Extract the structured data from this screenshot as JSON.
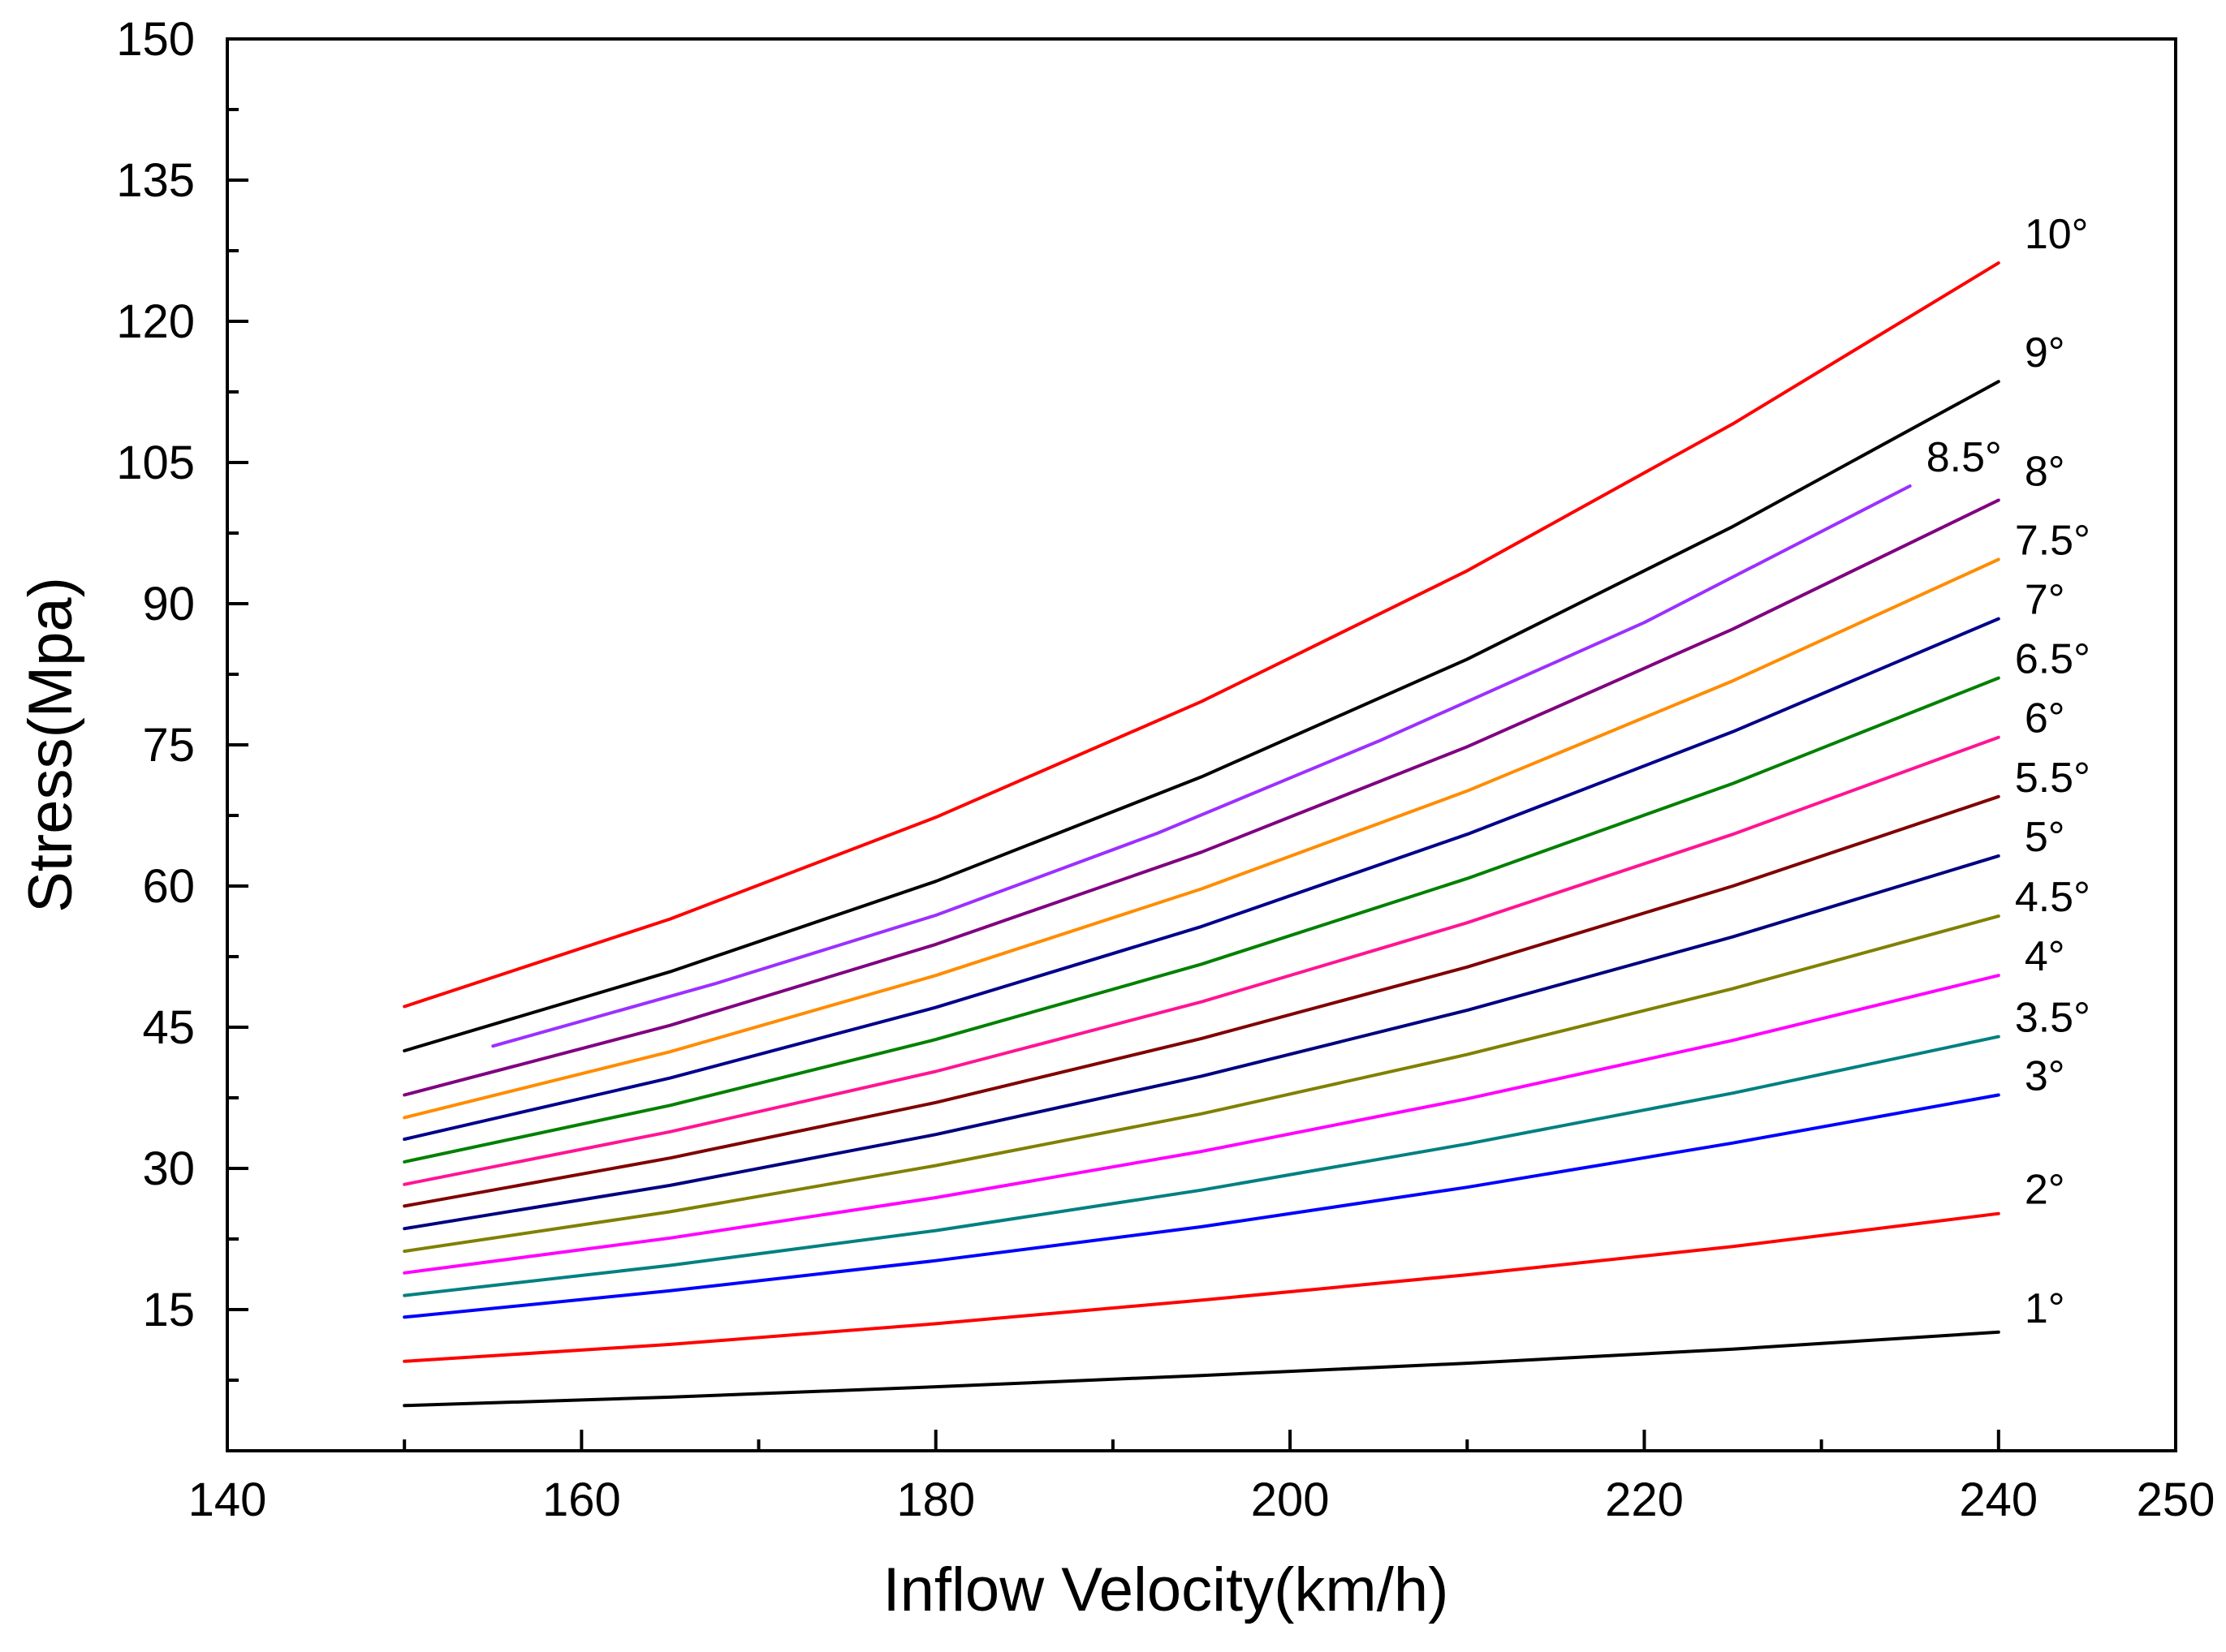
{
  "chart_data": {
    "type": "line",
    "title": "",
    "xlabel": "Inflow Velocity(km/h)",
    "ylabel": "Stress(Mpa)",
    "xlim": [
      140,
      250
    ],
    "ylim": [
      0,
      150
    ],
    "x_ticks": [
      140,
      160,
      180,
      200,
      220,
      240,
      250
    ],
    "y_ticks": [
      15,
      30,
      45,
      60,
      75,
      90,
      105,
      120,
      135,
      150
    ],
    "grid": false,
    "legend": "inline labels at right end of each line",
    "series": [
      {
        "name": "1°",
        "color": "#000000",
        "x": [
          150,
          165,
          180,
          195,
          210,
          225,
          240
        ],
        "y": [
          4.8,
          5.7,
          6.8,
          8.0,
          9.3,
          10.8,
          12.6
        ]
      },
      {
        "name": "2°",
        "color": "#ff0000",
        "x": [
          150,
          165,
          180,
          195,
          210,
          225,
          240
        ],
        "y": [
          9.5,
          11.3,
          13.5,
          16.0,
          18.7,
          21.7,
          25.2
        ]
      },
      {
        "name": "3°",
        "color": "#0000ff",
        "x": [
          150,
          165,
          180,
          195,
          210,
          225,
          240
        ],
        "y": [
          14.2,
          17.0,
          20.2,
          23.8,
          28.0,
          32.7,
          37.8
        ]
      },
      {
        "name": "3.5°",
        "color": "#008080",
        "x": [
          150,
          165,
          180,
          195,
          210,
          225,
          240
        ],
        "y": [
          16.5,
          19.7,
          23.4,
          27.7,
          32.6,
          38.0,
          44.0
        ]
      },
      {
        "name": "4°",
        "color": "#ff00ff",
        "x": [
          150,
          165,
          180,
          195,
          210,
          225,
          240
        ],
        "y": [
          18.9,
          22.6,
          26.9,
          31.8,
          37.4,
          43.6,
          50.5
        ]
      },
      {
        "name": "4.5°",
        "color": "#808000",
        "x": [
          150,
          165,
          180,
          195,
          210,
          225,
          240
        ],
        "y": [
          21.2,
          25.4,
          30.3,
          35.8,
          42.1,
          49.1,
          56.8
        ]
      },
      {
        "name": "5°",
        "color": "#000080",
        "x": [
          150,
          165,
          180,
          195,
          210,
          225,
          240
        ],
        "y": [
          23.6,
          28.2,
          33.6,
          39.8,
          46.8,
          54.6,
          63.2
        ]
      },
      {
        "name": "5.5°",
        "color": "#800000",
        "x": [
          150,
          165,
          180,
          195,
          210,
          225,
          240
        ],
        "y": [
          26.0,
          31.1,
          37.0,
          43.8,
          51.4,
          60.0,
          69.5
        ]
      },
      {
        "name": "6°",
        "color": "#ff1493",
        "x": [
          150,
          165,
          180,
          195,
          210,
          225,
          240
        ],
        "y": [
          28.3,
          33.9,
          40.3,
          47.7,
          56.1,
          65.5,
          75.8
        ]
      },
      {
        "name": "6.5°",
        "color": "#008000",
        "x": [
          150,
          165,
          180,
          195,
          210,
          225,
          240
        ],
        "y": [
          30.7,
          36.7,
          43.7,
          51.7,
          60.8,
          70.9,
          82.1
        ]
      },
      {
        "name": "7°",
        "color": "#00008b",
        "x": [
          150,
          165,
          180,
          195,
          210,
          225,
          240
        ],
        "y": [
          33.1,
          39.6,
          47.1,
          55.7,
          65.5,
          76.4,
          88.4
        ]
      },
      {
        "name": "7.5°",
        "color": "#ff8c00",
        "x": [
          150,
          165,
          180,
          195,
          210,
          225,
          240
        ],
        "y": [
          35.4,
          42.4,
          50.5,
          59.7,
          70.1,
          81.8,
          94.7
        ]
      },
      {
        "name": "8°",
        "color": "#800080",
        "x": [
          150,
          165,
          180,
          195,
          210,
          225,
          240
        ],
        "y": [
          37.8,
          45.2,
          53.8,
          63.6,
          74.8,
          87.3,
          101.0
        ]
      },
      {
        "name": "8.5°",
        "color": "#9b30ff",
        "x": [
          155,
          167.5,
          180,
          192.5,
          205,
          220,
          235
        ],
        "y": [
          43.0,
          49.6,
          56.9,
          65.6,
          75.4,
          88.0,
          102.5
        ]
      },
      {
        "name": "9°",
        "color": "#000000",
        "x": [
          150,
          165,
          180,
          195,
          210,
          225,
          240
        ],
        "y": [
          42.5,
          50.9,
          60.5,
          71.6,
          84.1,
          98.2,
          113.6
        ]
      },
      {
        "name": "10°",
        "color": "#ff0000",
        "x": [
          150,
          165,
          180,
          195,
          210,
          225,
          240
        ],
        "y": [
          47.2,
          56.5,
          67.3,
          79.6,
          93.5,
          109.1,
          126.2
        ]
      }
    ]
  }
}
